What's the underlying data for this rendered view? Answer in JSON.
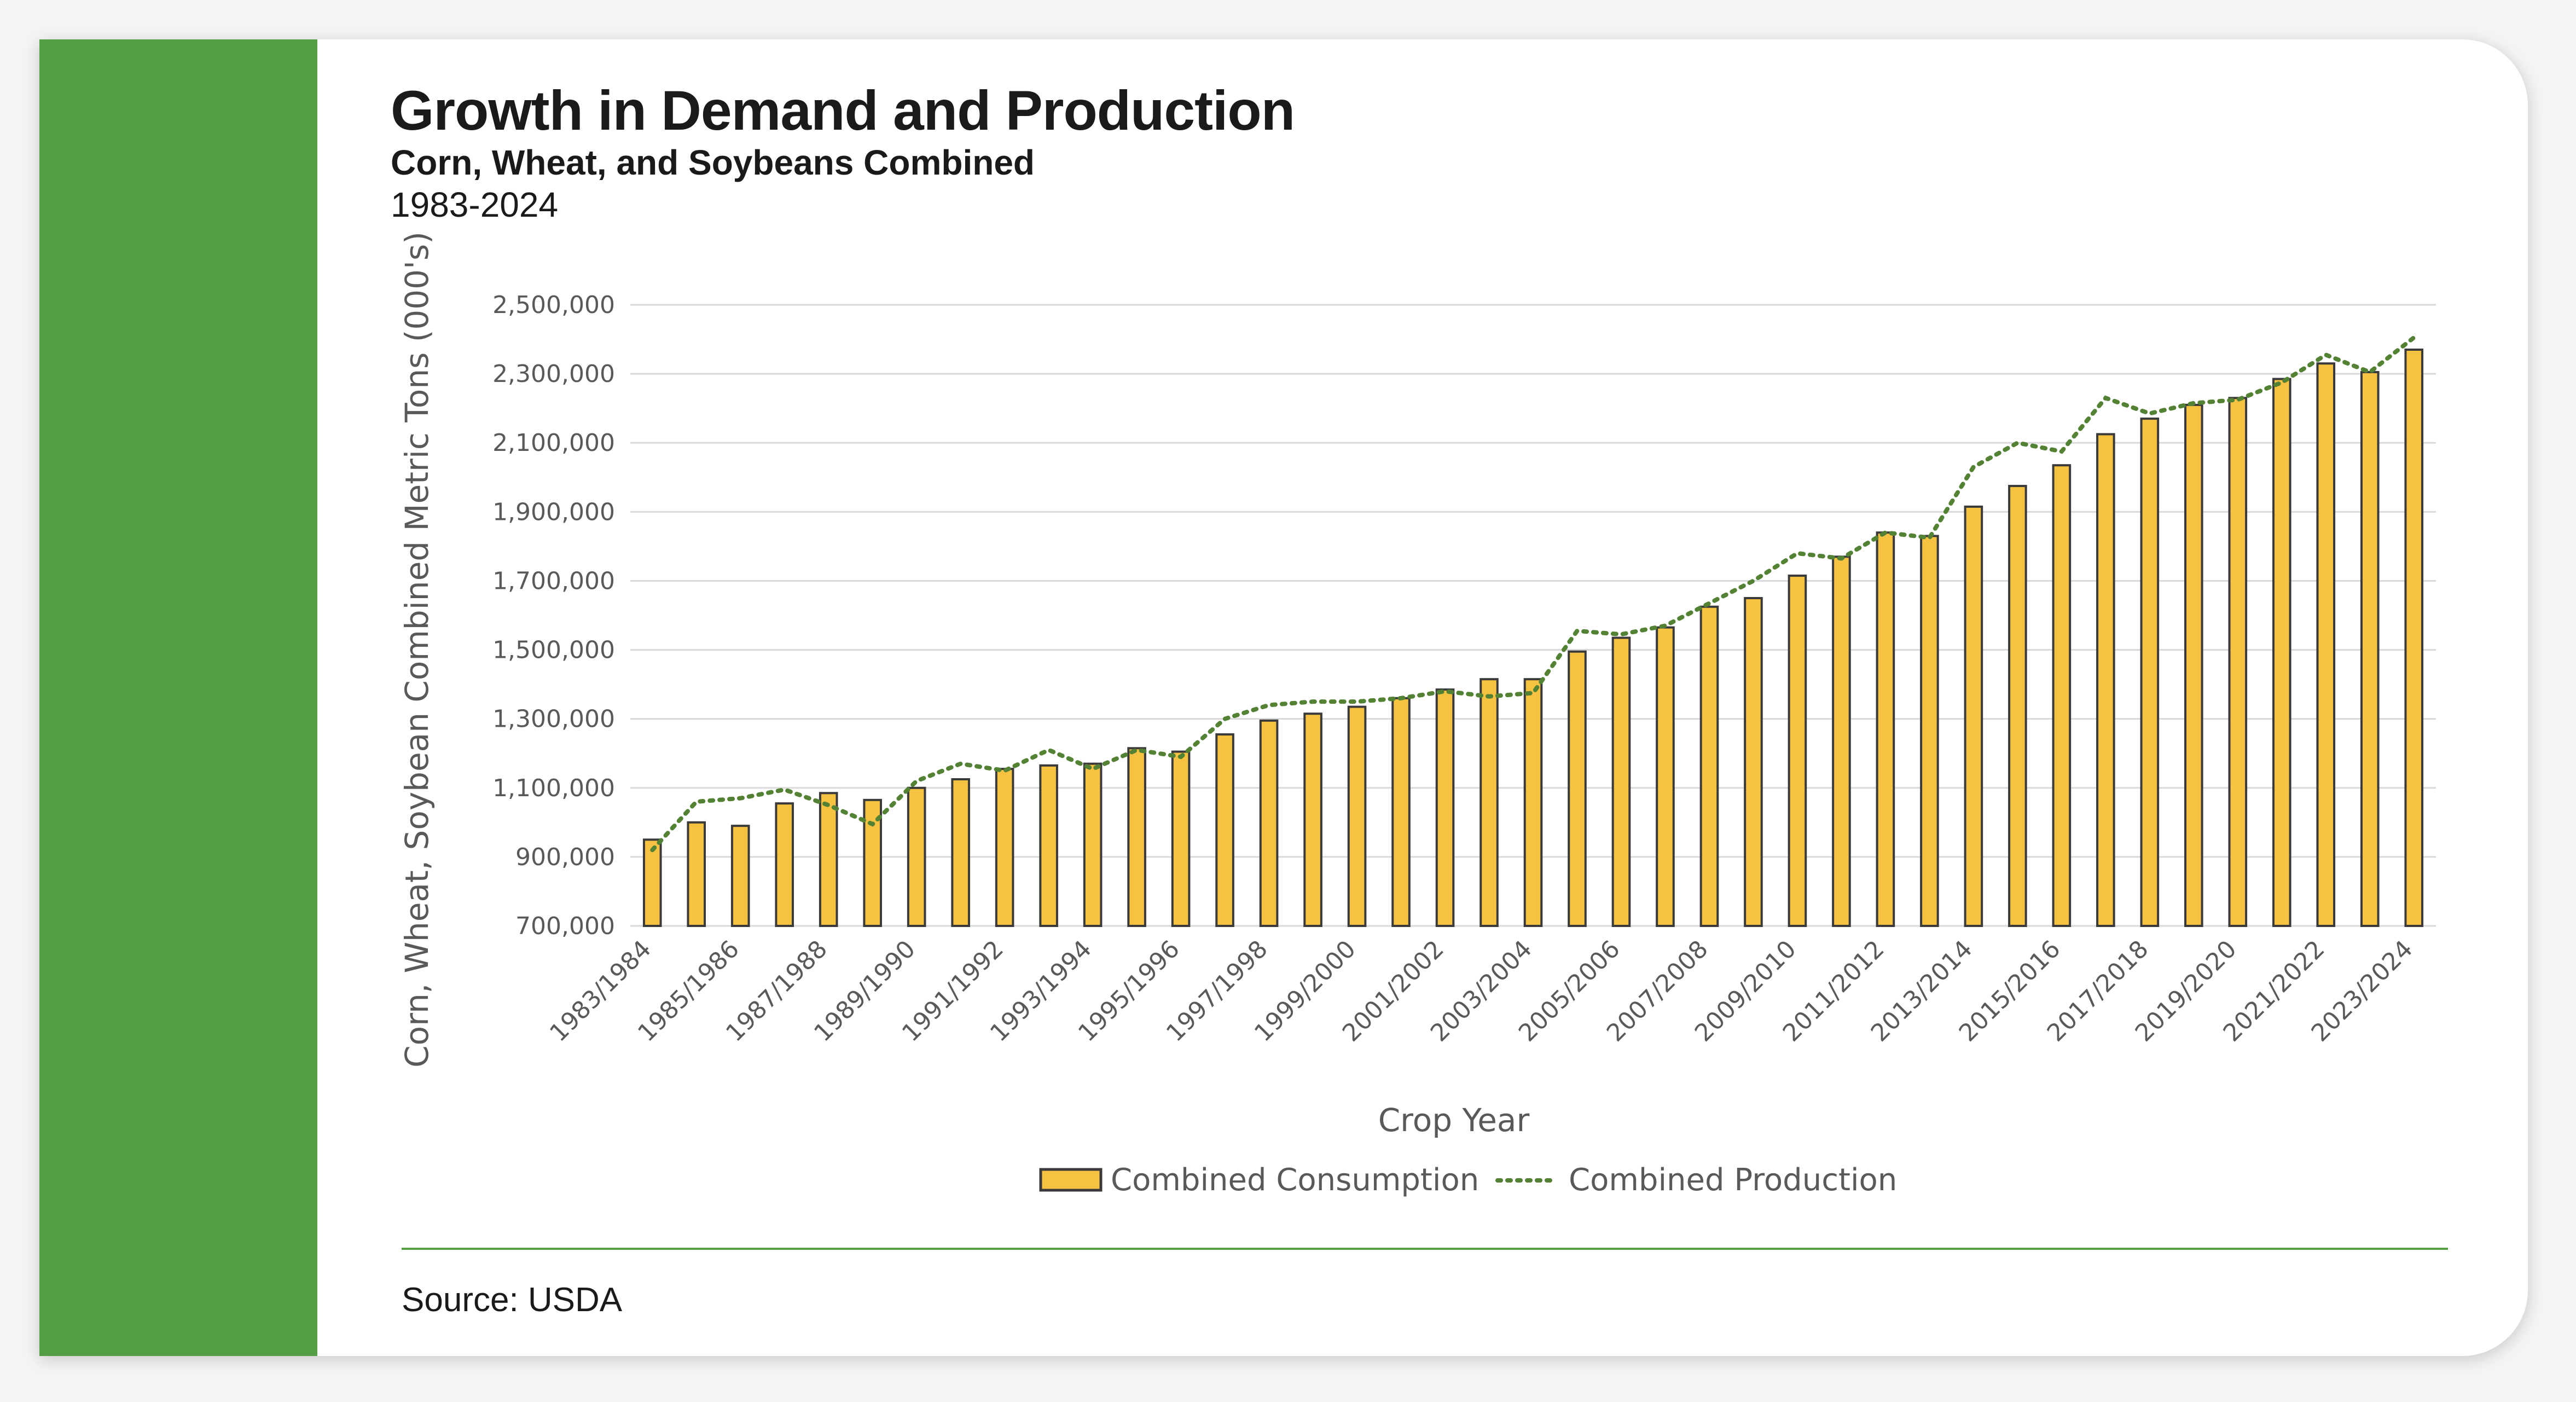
{
  "header": {
    "title": "Growth in Demand and Production",
    "subtitle": "Corn, Wheat, and Soybeans Combined",
    "range": "1983-2024"
  },
  "footer": {
    "source": "Source: USDA"
  },
  "colors": {
    "sidebar": "#549f44",
    "bar_fill": "#f5c242",
    "bar_edge": "#3a3a3a",
    "production_line": "#548235",
    "grid": "#d9d9d9"
  },
  "chart_data": {
    "type": "bar",
    "xlabel": "Crop Year",
    "ylabel": "Corn, Wheat, Soybean Combined Metric Tons (000's)",
    "ylim": [
      700000,
      2500000
    ],
    "yticks": [
      700000,
      900000,
      1100000,
      1300000,
      1500000,
      1700000,
      1900000,
      2100000,
      2300000,
      2500000
    ],
    "ytick_labels": [
      "700,000",
      "900,000",
      "1,100,000",
      "1,300,000",
      "1,500,000",
      "1,700,000",
      "1,900,000",
      "2,100,000",
      "2,300,000",
      "2,500,000"
    ],
    "grid": true,
    "legend_position": "bottom",
    "categories": [
      "1983/1984",
      "1984/1985",
      "1985/1986",
      "1986/1987",
      "1987/1988",
      "1988/1989",
      "1989/1990",
      "1990/1991",
      "1991/1992",
      "1992/1993",
      "1993/1994",
      "1994/1995",
      "1995/1996",
      "1996/1997",
      "1997/1998",
      "1998/1999",
      "1999/2000",
      "2000/2001",
      "2001/2002",
      "2002/2003",
      "2003/2004",
      "2004/2005",
      "2005/2006",
      "2006/2007",
      "2007/2008",
      "2008/2009",
      "2009/2010",
      "2010/2011",
      "2011/2012",
      "2012/2013",
      "2013/2014",
      "2014/2015",
      "2015/2016",
      "2016/2017",
      "2017/2018",
      "2018/2019",
      "2019/2020",
      "2020/2021",
      "2021/2022",
      "2022/2023",
      "2023/2024"
    ],
    "x_tick_labels": [
      "1983/1984",
      "1985/1986",
      "1987/1988",
      "1989/1990",
      "1991/1992",
      "1993/1994",
      "1995/1996",
      "1997/1998",
      "1999/2000",
      "2001/2002",
      "2003/2004",
      "2005/2006",
      "2007/2008",
      "2009/2010",
      "2011/2012",
      "2013/2014",
      "2015/2016",
      "2017/2018",
      "2019/2020",
      "2021/2022",
      "2023/2024"
    ],
    "series": [
      {
        "name": "Combined Consumption",
        "kind": "bar",
        "values": [
          950000,
          1000000,
          990000,
          1055000,
          1085000,
          1065000,
          1100000,
          1125000,
          1155000,
          1165000,
          1170000,
          1215000,
          1205000,
          1255000,
          1295000,
          1315000,
          1335000,
          1360000,
          1385000,
          1415000,
          1415000,
          1495000,
          1535000,
          1565000,
          1625000,
          1650000,
          1715000,
          1770000,
          1840000,
          1830000,
          1915000,
          1975000,
          2035000,
          2125000,
          2170000,
          2210000,
          2230000,
          2285000,
          2330000,
          2305000,
          2370000
        ]
      },
      {
        "name": "Combined Production",
        "kind": "line",
        "style": "dotted",
        "values": [
          920000,
          1060000,
          1070000,
          1095000,
          1050000,
          995000,
          1120000,
          1170000,
          1150000,
          1210000,
          1155000,
          1210000,
          1190000,
          1300000,
          1340000,
          1350000,
          1350000,
          1360000,
          1380000,
          1365000,
          1375000,
          1555000,
          1545000,
          1570000,
          1635000,
          1700000,
          1780000,
          1765000,
          1840000,
          1825000,
          2030000,
          2100000,
          2075000,
          2230000,
          2185000,
          2215000,
          2225000,
          2275000,
          2355000,
          2305000,
          2405000
        ]
      }
    ]
  }
}
